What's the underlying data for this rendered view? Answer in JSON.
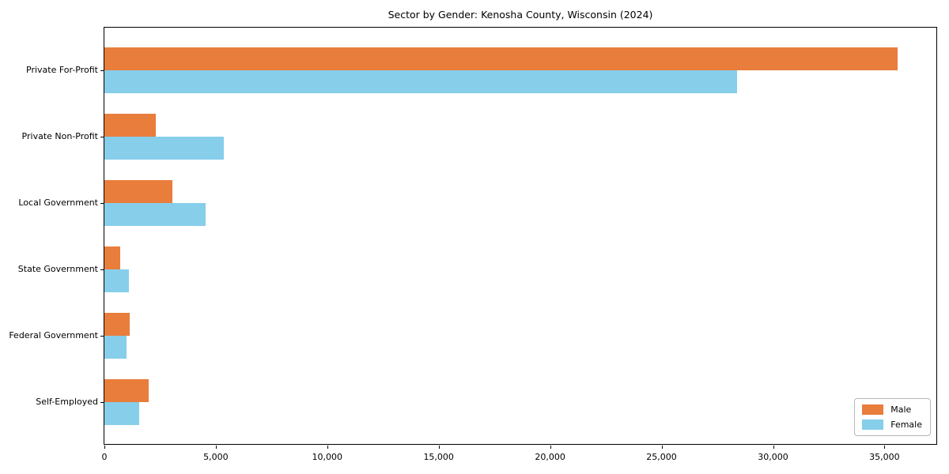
{
  "chart_data": {
    "type": "bar",
    "orientation": "horizontal",
    "title": "Sector by Gender: Kenosha County, Wisconsin (2024)",
    "categories": [
      "Private For-Profit",
      "Private Non-Profit",
      "Local Government",
      "State Government",
      "Federal Government",
      "Self-Employed"
    ],
    "series": [
      {
        "name": "Male",
        "color": "#e87d3c",
        "values": [
          35600,
          2300,
          3050,
          700,
          1150,
          2000
        ]
      },
      {
        "name": "Female",
        "color": "#87ceeb",
        "values": [
          28400,
          5350,
          4550,
          1100,
          1000,
          1550
        ]
      }
    ],
    "xlabel": "",
    "ylabel": "",
    "xlim": [
      0,
      37400
    ],
    "x_ticks": [
      0,
      5000,
      10000,
      15000,
      20000,
      25000,
      30000,
      35000
    ],
    "x_tick_labels": [
      "0",
      "5,000",
      "10,000",
      "15,000",
      "20,000",
      "25,000",
      "30,000",
      "35,000"
    ],
    "grid": false,
    "legend": {
      "position": "lower right",
      "entries": [
        "Male",
        "Female"
      ]
    }
  },
  "colors": {
    "male": "#e87d3c",
    "female": "#87ceeb",
    "axis": "#000000",
    "background": "#ffffff",
    "legend_border": "#b7b7b7"
  }
}
